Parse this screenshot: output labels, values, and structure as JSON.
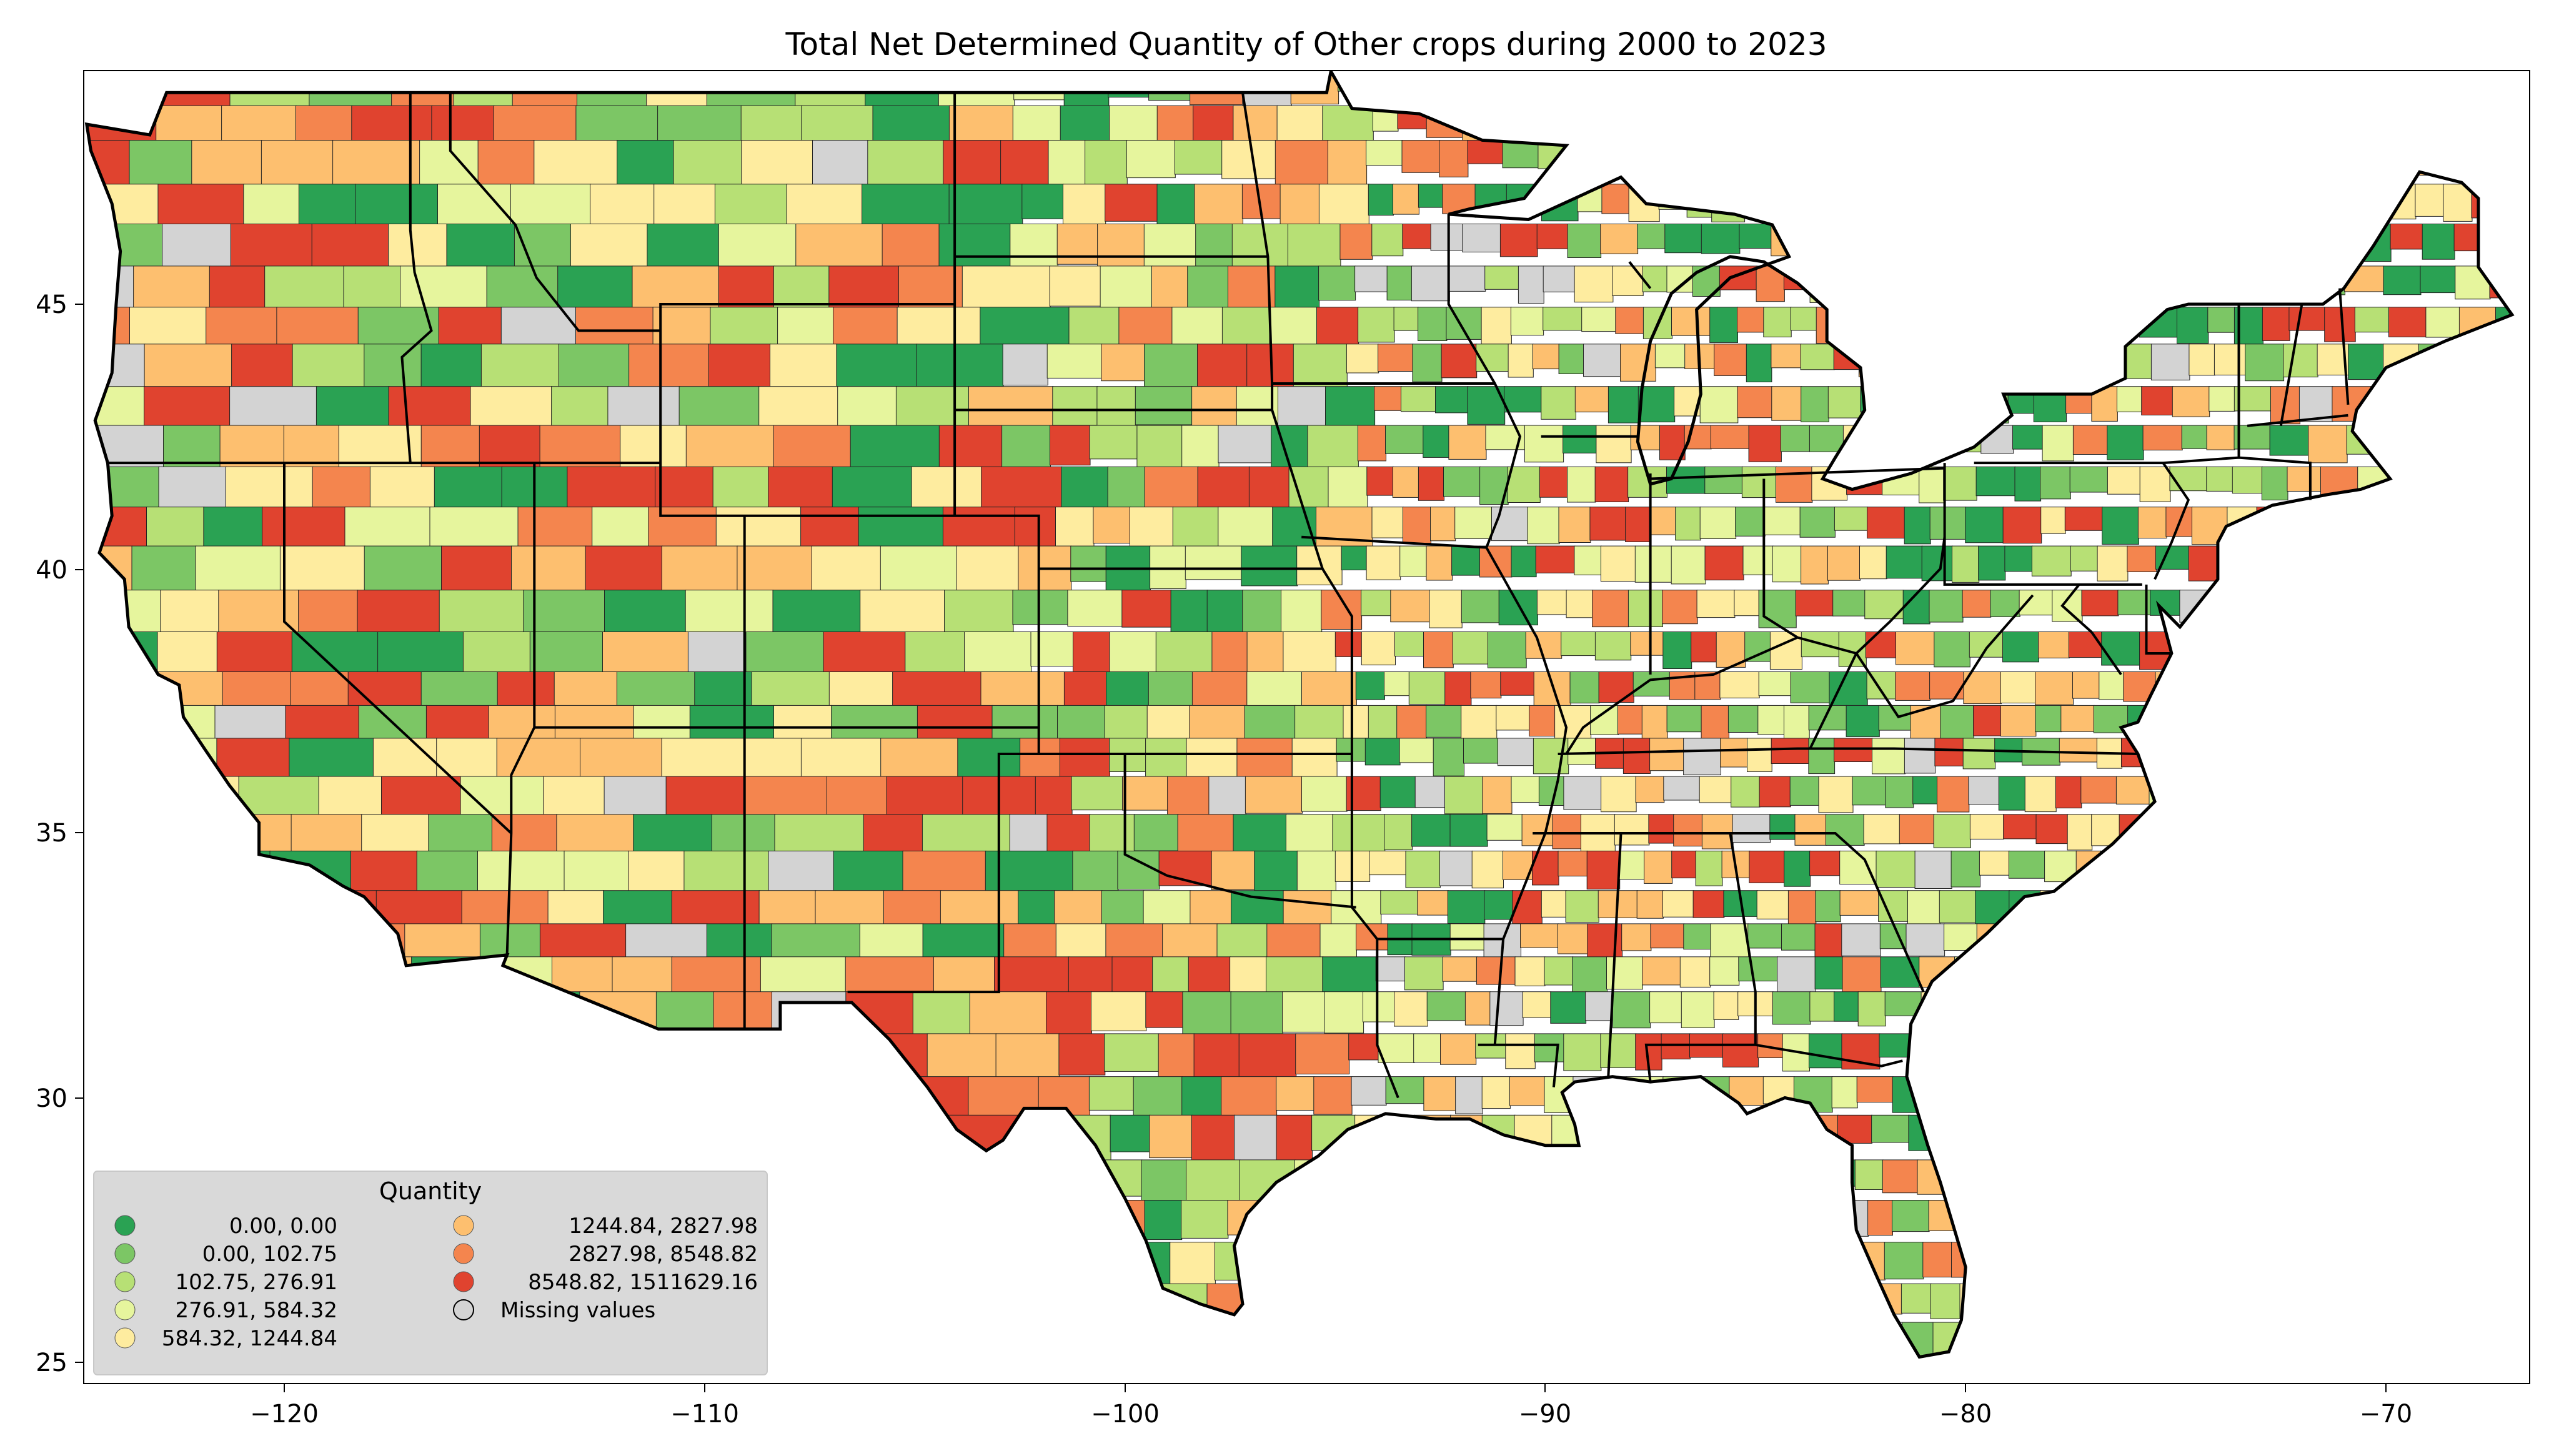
{
  "title": "Total Net Determined Quantity of Other crops during 2000 to 2023",
  "axes": {
    "x_ticks": [
      "−120",
      "−110",
      "−100",
      "−90",
      "−80",
      "−70"
    ],
    "y_ticks": [
      "45",
      "40",
      "35",
      "30",
      "25"
    ]
  },
  "map": {
    "projection": "plate carree (lon/lat)",
    "lon_range": [
      -124.9,
      -66.6
    ],
    "lat_range": [
      24.6,
      49.6
    ],
    "feature": "US county choropleth",
    "missing_color": "#d3d3d3"
  },
  "legend": {
    "title": "Quantity",
    "placement": "lower-left",
    "entries": [
      {
        "label": "0.00,       0.00",
        "color": "#2aa253"
      },
      {
        "label": "0.00,     102.75",
        "color": "#7cc665"
      },
      {
        "label": "102.75,     276.91",
        "color": "#b7e075"
      },
      {
        "label": "276.91,     584.32",
        "color": "#e6f59d"
      },
      {
        "label": "584.32,    1244.84",
        "color": "#feec9f"
      },
      {
        "label": "1244.84,    2827.98",
        "color": "#fdbf6f"
      },
      {
        "label": "2827.98,    8548.82",
        "color": "#f4854e"
      },
      {
        "label": "8548.82, 1511629.16",
        "color": "#e0432f"
      },
      {
        "label": "Missing values",
        "color": "#d3d3d3"
      }
    ]
  }
}
